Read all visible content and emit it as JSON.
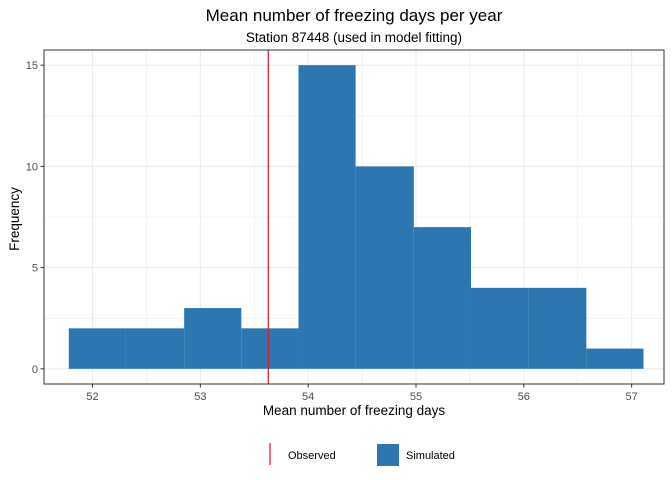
{
  "chart_data": {
    "type": "histogram",
    "title": "Mean number of freezing days per year",
    "subtitle": "Station 87448 (used in model fitting)",
    "xlabel": "Mean number of freezing days",
    "ylabel": "Frequency",
    "xlim": [
      51.55,
      57.3
    ],
    "ylim": [
      -0.75,
      15.75
    ],
    "x_ticks": [
      52,
      53,
      54,
      55,
      56,
      57
    ],
    "y_ticks": [
      0,
      5,
      10,
      15
    ],
    "bins": [
      {
        "x0": 51.78,
        "x1": 52.31,
        "count": 2
      },
      {
        "x0": 52.31,
        "x1": 52.85,
        "count": 2
      },
      {
        "x0": 52.85,
        "x1": 53.38,
        "count": 3
      },
      {
        "x0": 53.38,
        "x1": 53.91,
        "count": 2
      },
      {
        "x0": 53.91,
        "x1": 54.44,
        "count": 15
      },
      {
        "x0": 54.44,
        "x1": 54.98,
        "count": 10
      },
      {
        "x0": 54.98,
        "x1": 55.51,
        "count": 7
      },
      {
        "x0": 55.51,
        "x1": 56.04,
        "count": 4
      },
      {
        "x0": 56.04,
        "x1": 56.58,
        "count": 4
      },
      {
        "x0": 56.58,
        "x1": 57.11,
        "count": 1
      }
    ],
    "observed": 53.63,
    "grid": true,
    "legend_position": "bottom",
    "legend": [
      {
        "label": "Observed",
        "kind": "line"
      },
      {
        "label": "Simulated",
        "kind": "fill"
      }
    ],
    "colors": {
      "simulated": "#2c77b1",
      "observed": "#e4141c",
      "grid": "#ebebeb",
      "panel_border": "#333333"
    }
  }
}
